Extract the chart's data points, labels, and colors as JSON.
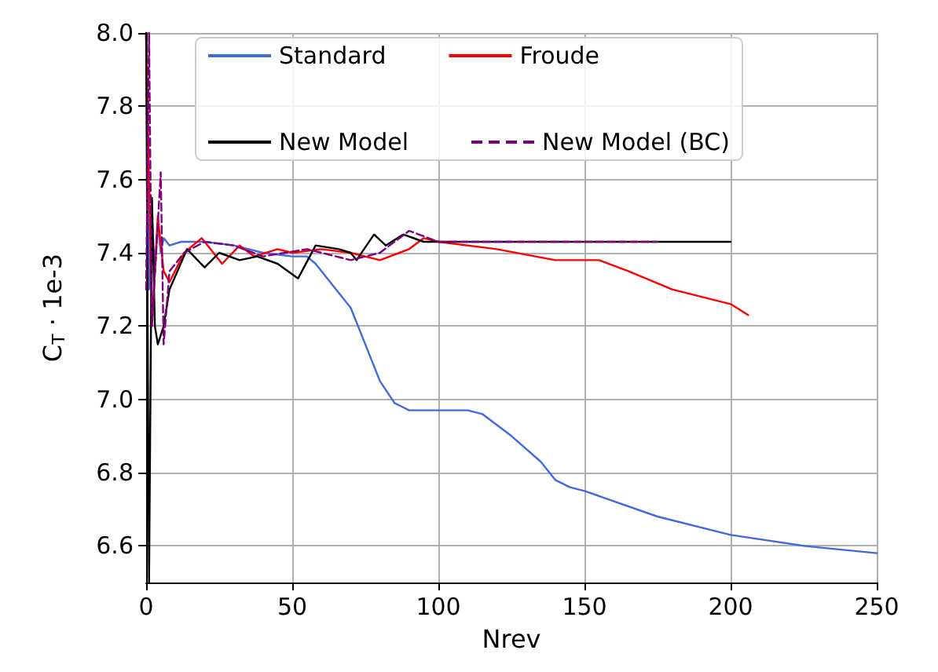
{
  "chart_data": {
    "type": "line",
    "xlabel": "Nrev",
    "ylabel": "C$_{T}$ · 1e-3",
    "xlim": [
      0,
      250
    ],
    "xticks": [
      0,
      50,
      100,
      150,
      200,
      250
    ],
    "ylim": [
      6.5,
      8.0
    ],
    "yticks": [
      6.6,
      6.8,
      {
        "value": 7.0,
        "label": "7.0"
      },
      7.2,
      7.4,
      7.6,
      7.8,
      {
        "value": 8.0,
        "label": "8.0"
      }
    ],
    "grid": true,
    "legend": "top",
    "marker": "none",
    "series": [
      {
        "name": "Standard",
        "color": "#4169e1",
        "x": [
          0,
          1,
          2,
          3,
          4,
          5,
          6,
          8,
          12,
          20,
          30,
          40,
          50,
          55,
          58,
          62,
          65,
          70,
          75,
          80,
          85,
          90,
          100,
          110,
          115,
          125,
          135,
          140,
          145,
          150,
          175,
          200,
          225,
          250
        ],
        "values": [
          8.0,
          7.3,
          7.5,
          7.35,
          7.48,
          7.4,
          7.44,
          7.42,
          7.43,
          7.43,
          7.42,
          7.4,
          7.39,
          7.39,
          7.37,
          7.33,
          7.3,
          7.25,
          7.15,
          7.05,
          6.99,
          6.97,
          6.97,
          6.97,
          6.96,
          6.9,
          6.83,
          6.78,
          6.76,
          6.75,
          6.68,
          6.63,
          6.6,
          6.58
        ]
      },
      {
        "name": "Froude",
        "color": "#ff0000",
        "x": [
          0,
          1,
          2,
          4,
          6,
          8,
          13,
          19,
          22,
          26,
          32,
          37,
          45,
          50,
          60,
          70,
          80,
          90,
          95,
          100,
          120,
          140,
          155,
          165,
          180,
          200,
          206
        ],
        "values": [
          8.0,
          7.6,
          7.2,
          7.5,
          7.35,
          7.32,
          7.4,
          7.44,
          7.41,
          7.37,
          7.42,
          7.39,
          7.41,
          7.4,
          7.41,
          7.4,
          7.38,
          7.41,
          7.44,
          7.43,
          7.41,
          7.38,
          7.38,
          7.35,
          7.3,
          7.26,
          7.23
        ]
      },
      {
        "name": "New Model",
        "color": "#000000",
        "x": [
          0,
          1,
          2,
          3,
          4,
          6,
          8,
          14,
          20,
          25,
          32,
          38,
          45,
          52,
          58,
          66,
          70,
          72,
          78,
          82,
          88,
          95,
          120,
          150,
          200
        ],
        "values": [
          8.0,
          6.5,
          7.55,
          7.2,
          7.15,
          7.2,
          7.3,
          7.41,
          7.36,
          7.4,
          7.38,
          7.39,
          7.37,
          7.33,
          7.42,
          7.41,
          7.4,
          7.38,
          7.45,
          7.42,
          7.45,
          7.43,
          7.43,
          7.43,
          7.43
        ]
      },
      {
        "name": "New Model (BC)",
        "color": "#800080",
        "line_style": "dashed",
        "x": [
          0,
          1,
          2,
          5,
          6,
          8,
          13,
          20,
          30,
          40,
          55,
          60,
          70,
          80,
          90,
          100,
          150,
          175
        ],
        "values": [
          7.3,
          8.0,
          7.2,
          7.62,
          7.15,
          7.35,
          7.4,
          7.43,
          7.42,
          7.39,
          7.41,
          7.4,
          7.38,
          7.4,
          7.46,
          7.43,
          7.43,
          7.43
        ]
      }
    ]
  }
}
